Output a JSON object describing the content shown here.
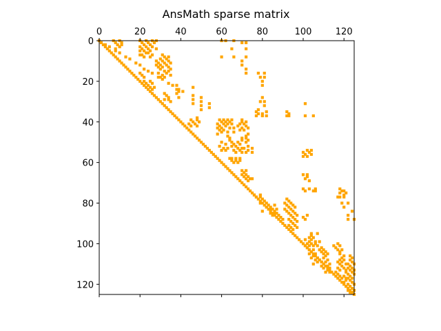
{
  "chart_data": {
    "type": "heatmap",
    "title": "AnsMath sparse matrix",
    "xlabel": "",
    "ylabel": "",
    "xlim": [
      0,
      125
    ],
    "ylim": [
      0,
      125
    ],
    "y_inverted": true,
    "x_axis_position": "top",
    "grid": false,
    "marker_color": "#FFA500",
    "x_ticks": [
      0,
      20,
      40,
      60,
      80,
      100,
      120
    ],
    "y_ticks": [
      0,
      20,
      40,
      60,
      80,
      100,
      120
    ],
    "diagonal": {
      "from": 0,
      "to": 125
    },
    "nonzeros": [
      [
        2,
        3
      ],
      [
        3,
        5
      ],
      [
        5,
        8
      ],
      [
        6,
        10
      ],
      [
        8,
        13
      ],
      [
        9,
        15
      ],
      [
        11,
        18
      ],
      [
        12,
        20
      ],
      [
        14,
        22
      ],
      [
        15,
        24
      ],
      [
        16,
        26
      ],
      [
        18,
        29
      ],
      [
        19,
        31
      ],
      [
        21,
        34
      ],
      [
        22,
        36
      ],
      [
        24,
        39
      ],
      [
        25,
        41
      ],
      [
        0,
        7
      ],
      [
        0,
        10
      ],
      [
        1,
        8
      ],
      [
        2,
        9
      ],
      [
        2,
        11
      ],
      [
        3,
        10
      ],
      [
        4,
        8
      ],
      [
        1,
        11
      ],
      [
        0,
        20
      ],
      [
        0,
        23
      ],
      [
        0,
        26
      ],
      [
        0,
        28
      ],
      [
        1,
        21
      ],
      [
        1,
        24
      ],
      [
        1,
        27
      ],
      [
        2,
        22
      ],
      [
        2,
        25
      ],
      [
        3,
        20
      ],
      [
        3,
        23
      ],
      [
        3,
        26
      ],
      [
        4,
        21
      ],
      [
        4,
        24
      ],
      [
        4,
        28
      ],
      [
        5,
        20
      ],
      [
        5,
        22
      ],
      [
        5,
        25
      ],
      [
        6,
        23
      ],
      [
        6,
        24
      ],
      [
        7,
        20
      ],
      [
        7,
        21
      ],
      [
        7,
        26
      ],
      [
        8,
        22
      ],
      [
        8,
        25
      ],
      [
        7,
        31
      ],
      [
        8,
        32
      ],
      [
        8,
        34
      ],
      [
        9,
        30
      ],
      [
        9,
        33
      ],
      [
        10,
        28
      ],
      [
        10,
        31
      ],
      [
        10,
        34
      ],
      [
        11,
        29
      ],
      [
        11,
        32
      ],
      [
        11,
        35
      ],
      [
        12,
        28
      ],
      [
        12,
        30
      ],
      [
        12,
        33
      ],
      [
        13,
        29
      ],
      [
        13,
        31
      ],
      [
        13,
        34
      ],
      [
        14,
        30
      ],
      [
        14,
        35
      ],
      [
        15,
        32
      ],
      [
        15,
        34
      ],
      [
        16,
        29
      ],
      [
        16,
        33
      ],
      [
        17,
        31
      ],
      [
        17,
        35
      ],
      [
        18,
        30
      ],
      [
        18,
        32
      ],
      [
        16,
        20
      ],
      [
        17,
        21
      ],
      [
        18,
        22
      ],
      [
        20,
        22
      ],
      [
        20,
        25
      ],
      [
        21,
        23
      ],
      [
        21,
        26
      ],
      [
        22,
        22
      ],
      [
        22,
        24
      ],
      [
        23,
        25
      ],
      [
        23,
        27
      ],
      [
        24,
        26
      ],
      [
        26,
        32
      ],
      [
        27,
        33
      ],
      [
        28,
        34
      ],
      [
        29,
        32
      ],
      [
        30,
        35
      ],
      [
        29,
        34
      ],
      [
        22,
        38
      ],
      [
        24,
        38
      ],
      [
        25,
        39
      ],
      [
        26,
        38
      ],
      [
        28,
        39
      ],
      [
        23,
        46
      ],
      [
        27,
        46
      ],
      [
        29,
        46
      ],
      [
        31,
        46
      ],
      [
        28,
        50
      ],
      [
        30,
        50
      ],
      [
        32,
        50
      ],
      [
        34,
        50
      ],
      [
        33,
        54
      ],
      [
        31,
        54
      ],
      [
        0,
        60
      ],
      [
        0,
        62
      ],
      [
        8,
        60
      ],
      [
        0,
        66
      ],
      [
        4,
        65
      ],
      [
        8,
        66
      ],
      [
        1,
        70
      ],
      [
        1,
        72
      ],
      [
        4,
        72
      ],
      [
        8,
        72
      ],
      [
        10,
        70
      ],
      [
        12,
        70
      ],
      [
        14,
        72
      ],
      [
        16,
        72
      ],
      [
        16,
        78
      ],
      [
        18,
        79
      ],
      [
        16,
        81
      ],
      [
        18,
        81
      ],
      [
        20,
        80
      ],
      [
        22,
        80
      ],
      [
        28,
        80
      ],
      [
        30,
        79
      ],
      [
        30,
        81
      ],
      [
        32,
        81
      ],
      [
        34,
        78
      ],
      [
        35,
        77
      ],
      [
        36,
        78
      ],
      [
        37,
        77
      ],
      [
        37,
        80
      ],
      [
        36,
        80
      ],
      [
        35,
        82
      ],
      [
        37,
        82
      ],
      [
        35,
        92
      ],
      [
        36,
        93
      ],
      [
        37,
        92
      ],
      [
        37,
        93
      ],
      [
        31,
        101
      ],
      [
        37,
        101
      ],
      [
        37,
        105
      ],
      [
        38,
        48
      ],
      [
        39,
        45
      ],
      [
        39,
        48
      ],
      [
        40,
        46
      ],
      [
        41,
        44
      ],
      [
        41,
        47
      ],
      [
        42,
        45
      ],
      [
        42,
        48
      ],
      [
        40,
        49
      ],
      [
        39,
        59
      ],
      [
        39,
        61
      ],
      [
        39,
        63
      ],
      [
        39,
        65
      ],
      [
        40,
        60
      ],
      [
        40,
        62
      ],
      [
        40,
        64
      ],
      [
        41,
        58
      ],
      [
        41,
        61
      ],
      [
        41,
        63
      ],
      [
        42,
        59
      ],
      [
        42,
        62
      ],
      [
        43,
        58
      ],
      [
        43,
        60
      ],
      [
        43,
        64
      ],
      [
        44,
        59
      ],
      [
        44,
        61
      ],
      [
        45,
        60
      ],
      [
        45,
        63
      ],
      [
        46,
        58
      ],
      [
        41,
        65
      ],
      [
        43,
        66
      ],
      [
        45,
        66
      ],
      [
        39,
        70
      ],
      [
        40,
        70
      ],
      [
        40,
        72
      ],
      [
        41,
        69
      ],
      [
        41,
        71
      ],
      [
        42,
        68
      ],
      [
        42,
        72
      ],
      [
        43,
        70
      ],
      [
        43,
        73
      ],
      [
        44,
        69
      ],
      [
        44,
        71
      ],
      [
        46,
        73
      ],
      [
        47,
        72
      ],
      [
        48,
        72
      ],
      [
        48,
        70
      ],
      [
        49,
        70
      ],
      [
        49,
        73
      ],
      [
        50,
        65
      ],
      [
        50,
        68
      ],
      [
        51,
        66
      ],
      [
        51,
        69
      ],
      [
        52,
        65
      ],
      [
        52,
        67
      ],
      [
        53,
        68
      ],
      [
        53,
        70
      ],
      [
        54,
        66
      ],
      [
        54,
        69
      ],
      [
        55,
        67
      ],
      [
        55,
        70
      ],
      [
        50,
        72
      ],
      [
        52,
        73
      ],
      [
        54,
        73
      ],
      [
        55,
        72
      ],
      [
        53,
        75
      ],
      [
        55,
        75
      ],
      [
        53,
        71
      ],
      [
        50,
        60
      ],
      [
        51,
        62
      ],
      [
        52,
        59
      ],
      [
        53,
        61
      ],
      [
        53,
        63
      ],
      [
        54,
        60
      ],
      [
        54,
        62
      ],
      [
        47,
        63
      ],
      [
        48,
        64
      ],
      [
        49,
        64
      ],
      [
        54,
        102
      ],
      [
        55,
        100
      ],
      [
        55,
        103
      ],
      [
        56,
        101
      ],
      [
        56,
        104
      ],
      [
        57,
        102
      ],
      [
        54,
        104
      ],
      [
        57,
        100
      ],
      [
        58,
        65
      ],
      [
        58,
        67
      ],
      [
        58,
        69
      ],
      [
        59,
        65
      ],
      [
        59,
        67
      ],
      [
        59,
        69
      ],
      [
        60,
        66
      ],
      [
        60,
        68
      ],
      [
        58,
        64
      ],
      [
        64,
        70
      ],
      [
        64,
        72
      ],
      [
        65,
        71
      ],
      [
        66,
        70
      ],
      [
        66,
        72
      ],
      [
        67,
        71
      ],
      [
        67,
        73
      ],
      [
        68,
        72
      ],
      [
        68,
        74
      ],
      [
        69,
        73
      ],
      [
        68,
        75
      ],
      [
        66,
        100
      ],
      [
        67,
        102
      ],
      [
        68,
        101
      ],
      [
        69,
        103
      ],
      [
        66,
        102
      ],
      [
        73,
        100
      ],
      [
        74,
        101
      ],
      [
        73,
        103
      ],
      [
        74,
        105
      ],
      [
        73,
        106
      ],
      [
        74,
        106
      ],
      [
        73,
        118
      ],
      [
        74,
        119
      ],
      [
        75,
        118
      ],
      [
        76,
        120
      ],
      [
        74,
        120
      ],
      [
        75,
        121
      ],
      [
        77,
        118
      ],
      [
        77,
        120
      ],
      [
        77,
        117
      ],
      [
        76,
        76
      ],
      [
        77,
        77
      ],
      [
        76,
        79
      ],
      [
        77,
        79
      ],
      [
        78,
        80
      ],
      [
        79,
        81
      ],
      [
        80,
        79
      ],
      [
        80,
        82
      ],
      [
        81,
        83
      ],
      [
        82,
        84
      ],
      [
        83,
        85
      ],
      [
        84,
        86
      ],
      [
        85,
        87
      ],
      [
        86,
        88
      ],
      [
        87,
        89
      ],
      [
        88,
        90
      ],
      [
        78,
        92
      ],
      [
        79,
        93
      ],
      [
        80,
        91
      ],
      [
        80,
        94
      ],
      [
        81,
        92
      ],
      [
        81,
        95
      ],
      [
        82,
        93
      ],
      [
        82,
        96
      ],
      [
        83,
        91
      ],
      [
        83,
        94
      ],
      [
        84,
        92
      ],
      [
        84,
        95
      ],
      [
        85,
        93
      ],
      [
        85,
        96
      ],
      [
        86,
        94
      ],
      [
        86,
        97
      ],
      [
        87,
        95
      ],
      [
        88,
        93
      ],
      [
        88,
        96
      ],
      [
        89,
        94
      ],
      [
        89,
        97
      ],
      [
        90,
        95
      ],
      [
        91,
        93
      ],
      [
        91,
        96
      ],
      [
        92,
        94
      ],
      [
        92,
        97
      ],
      [
        93,
        95
      ],
      [
        84,
        80
      ],
      [
        82,
        82
      ],
      [
        83,
        84
      ],
      [
        85,
        84
      ],
      [
        81,
        86
      ],
      [
        83,
        87
      ],
      [
        85,
        86
      ],
      [
        86,
        85
      ],
      [
        86,
        102
      ],
      [
        88,
        101
      ],
      [
        87,
        100
      ],
      [
        80,
        119
      ],
      [
        82,
        120
      ],
      [
        84,
        124
      ],
      [
        86,
        122
      ],
      [
        88,
        122
      ],
      [
        88,
        125
      ],
      [
        80,
        122
      ],
      [
        95,
        104
      ],
      [
        95,
        107
      ],
      [
        96,
        104
      ],
      [
        97,
        103
      ],
      [
        97,
        105
      ],
      [
        98,
        101
      ],
      [
        98,
        104
      ],
      [
        99,
        103
      ],
      [
        99,
        106
      ],
      [
        100,
        102
      ],
      [
        100,
        104
      ],
      [
        101,
        101
      ],
      [
        101,
        103
      ],
      [
        101,
        105
      ],
      [
        102,
        102
      ],
      [
        103,
        103
      ],
      [
        103,
        105
      ],
      [
        104,
        104
      ],
      [
        105,
        103
      ],
      [
        105,
        106
      ],
      [
        106,
        105
      ],
      [
        107,
        104
      ],
      [
        107,
        107
      ],
      [
        108,
        106
      ],
      [
        109,
        107
      ],
      [
        110,
        105
      ],
      [
        99,
        108
      ],
      [
        100,
        106
      ],
      [
        101,
        107
      ],
      [
        102,
        109
      ],
      [
        103,
        108
      ],
      [
        103,
        110
      ],
      [
        104,
        109
      ],
      [
        104,
        111
      ],
      [
        105,
        110
      ],
      [
        105,
        112
      ],
      [
        106,
        111
      ],
      [
        107,
        110
      ],
      [
        108,
        108
      ],
      [
        108,
        112
      ],
      [
        109,
        109
      ],
      [
        109,
        111
      ],
      [
        110,
        110
      ],
      [
        110,
        113
      ],
      [
        111,
        109
      ],
      [
        111,
        112
      ],
      [
        112,
        110
      ],
      [
        112,
        113
      ],
      [
        113,
        112
      ],
      [
        114,
        111
      ],
      [
        114,
        113
      ],
      [
        100,
        117
      ],
      [
        101,
        118
      ],
      [
        102,
        116
      ],
      [
        103,
        117
      ],
      [
        104,
        118
      ],
      [
        101,
        115
      ],
      [
        103,
        119
      ],
      [
        105,
        118
      ],
      [
        106,
        120
      ],
      [
        107,
        119
      ],
      [
        108,
        118
      ],
      [
        108,
        120
      ],
      [
        109,
        117
      ],
      [
        109,
        119
      ],
      [
        110,
        118
      ],
      [
        110,
        121
      ],
      [
        111,
        119
      ],
      [
        112,
        117
      ],
      [
        112,
        120
      ],
      [
        113,
        118
      ],
      [
        113,
        121
      ],
      [
        114,
        116
      ],
      [
        115,
        117
      ],
      [
        116,
        118
      ],
      [
        117,
        119
      ],
      [
        117,
        121
      ],
      [
        108,
        123
      ],
      [
        109,
        124
      ],
      [
        110,
        122
      ],
      [
        110,
        125
      ],
      [
        111,
        123
      ],
      [
        112,
        122
      ],
      [
        112,
        124
      ],
      [
        113,
        123
      ],
      [
        113,
        125
      ],
      [
        114,
        121
      ],
      [
        114,
        124
      ],
      [
        115,
        122
      ],
      [
        115,
        125
      ],
      [
        116,
        120
      ],
      [
        116,
        123
      ],
      [
        117,
        122
      ],
      [
        117,
        124
      ],
      [
        118,
        121
      ],
      [
        118,
        123
      ],
      [
        119,
        120
      ],
      [
        119,
        124
      ],
      [
        120,
        122
      ],
      [
        120,
        125
      ],
      [
        121,
        121
      ],
      [
        121,
        123
      ],
      [
        122,
        124
      ],
      [
        123,
        122
      ],
      [
        123,
        125
      ],
      [
        124,
        124
      ],
      [
        124,
        123
      ],
      [
        106,
        123
      ],
      [
        107,
        124
      ]
    ]
  }
}
